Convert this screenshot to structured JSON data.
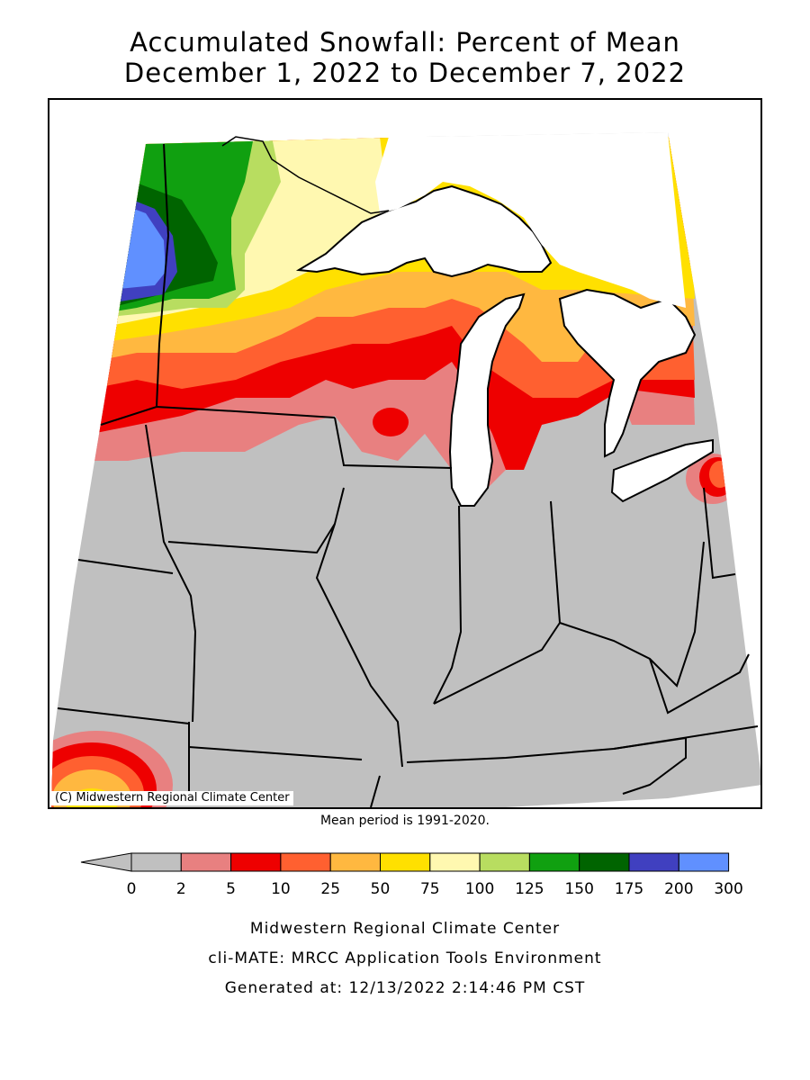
{
  "title": {
    "line1": "Accumulated Snowfall: Percent of Mean",
    "line2": "December 1, 2022 to December 7, 2022"
  },
  "map": {
    "copyright": "(C) Midwestern Regional Climate Center",
    "no_data_color": "#c0c0c0",
    "water_color": "#ffffff"
  },
  "mean_period": "Mean period is 1991-2020.",
  "legend": {
    "ticks": [
      "0",
      "2",
      "5",
      "10",
      "25",
      "50",
      "75",
      "100",
      "125",
      "150",
      "175",
      "200",
      "300"
    ],
    "colors": [
      "#c0c0c0",
      "#e88080",
      "#ee0000",
      "#ff6030",
      "#ffb840",
      "#ffe000",
      "#fff8b0",
      "#b8dd60",
      "#10a010",
      "#006400",
      "#4040c0",
      "#6090ff"
    ],
    "arrow_color": "#c0c0c0"
  },
  "footer": {
    "line1": "Midwestern Regional Climate Center",
    "line2": "cli-MATE: MRCC Application Tools Environment",
    "line3": "Generated at: 12/13/2022 2:14:46 PM CST"
  }
}
